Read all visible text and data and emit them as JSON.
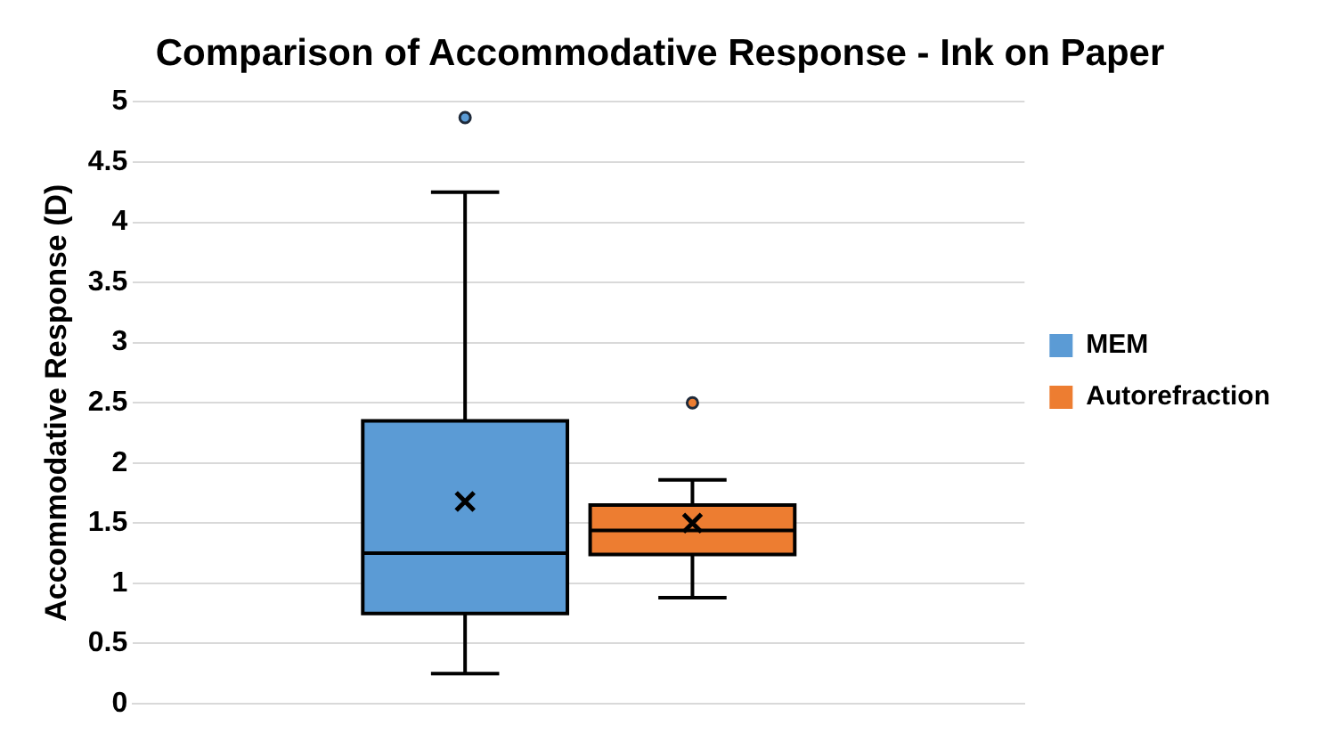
{
  "chart_data": {
    "type": "box",
    "title": "Comparison of Accommodative Response - Ink on Paper",
    "ylabel": "Accommodative Response (D)",
    "categories": [
      null
    ],
    "series": [
      {
        "name": "MEM",
        "color": "#5b9bd5",
        "boxes": [
          {
            "low": 0.25,
            "q1": 0.75,
            "median": 1.25,
            "q3": 2.35,
            "high": 4.25,
            "mean": 1.68,
            "outliers": [
              4.87
            ]
          }
        ]
      },
      {
        "name": "Autorefraction",
        "color": "#ed7d31",
        "boxes": [
          {
            "low": 0.88,
            "q1": 1.24,
            "median": 1.44,
            "q3": 1.65,
            "high": 1.86,
            "mean": 1.5,
            "outliers": [
              2.5
            ]
          }
        ]
      }
    ],
    "ylim": [
      0,
      5
    ],
    "yticks": [
      0,
      0.5,
      1,
      1.5,
      2,
      2.5,
      3,
      3.5,
      4,
      4.5,
      5
    ],
    "grid": "y",
    "legend": "right",
    "tick_labels": "y"
  }
}
